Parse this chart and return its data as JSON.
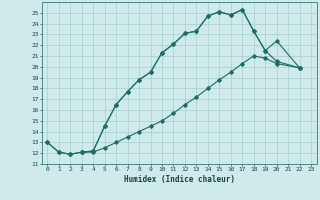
{
  "xlabel": "Humidex (Indice chaleur)",
  "bg_color": "#ceeaea",
  "line_color": "#1a6e64",
  "grid_color": "#a8cccc",
  "xlim": [
    -0.5,
    23.5
  ],
  "ylim": [
    11,
    26
  ],
  "xticks": [
    0,
    1,
    2,
    3,
    4,
    5,
    6,
    7,
    8,
    9,
    10,
    11,
    12,
    13,
    14,
    15,
    16,
    17,
    18,
    19,
    20,
    21,
    22,
    23
  ],
  "yticks": [
    11,
    12,
    13,
    14,
    15,
    16,
    17,
    18,
    19,
    20,
    21,
    22,
    23,
    24,
    25
  ],
  "line1_x": [
    0,
    1,
    2,
    3,
    4,
    5,
    6,
    7,
    8,
    9,
    10,
    11,
    12,
    13,
    14,
    15,
    16,
    17,
    18,
    19,
    20,
    22
  ],
  "line1_y": [
    13,
    12.1,
    11.9,
    12.1,
    12.2,
    14.5,
    16.5,
    17.7,
    18.8,
    19.5,
    21.3,
    22.1,
    23.1,
    23.3,
    24.7,
    25.1,
    24.8,
    25.3,
    23.3,
    21.5,
    20.5,
    19.9
  ],
  "line2_x": [
    0,
    1,
    2,
    3,
    4,
    5,
    6,
    7,
    8,
    9,
    10,
    11,
    12,
    13,
    14,
    15,
    16,
    17,
    18,
    19,
    20,
    22
  ],
  "line2_y": [
    13,
    12.1,
    11.9,
    12.1,
    12.1,
    12.5,
    13.0,
    13.5,
    14.0,
    14.5,
    15.0,
    15.7,
    16.5,
    17.2,
    18.0,
    18.8,
    19.5,
    20.3,
    21.0,
    20.8,
    20.3,
    19.9
  ],
  "line3_x": [
    3,
    4,
    5,
    6,
    7,
    8,
    9,
    10,
    11,
    12,
    13,
    14,
    15,
    16,
    17,
    18,
    19,
    20,
    22
  ],
  "line3_y": [
    12.1,
    12.2,
    14.5,
    16.5,
    17.7,
    18.8,
    19.5,
    21.3,
    22.1,
    23.1,
    23.3,
    24.7,
    25.1,
    24.8,
    25.3,
    23.3,
    21.5,
    22.4,
    19.9
  ]
}
